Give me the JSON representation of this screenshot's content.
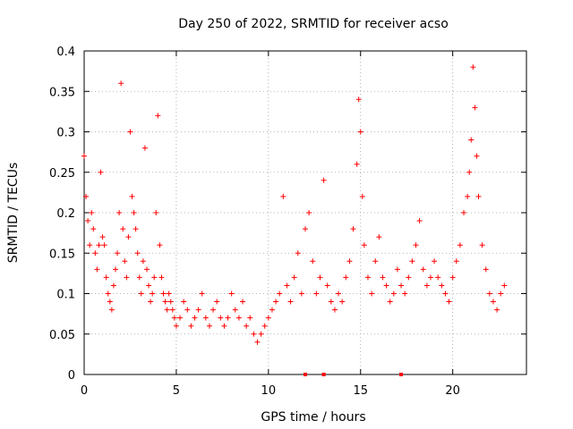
{
  "chart_data": {
    "type": "scatter",
    "title": "Day 250 of 2022, SRMTID for receiver acso",
    "xlabel": "GPS time / hours",
    "ylabel": "SRMTID / TECUs",
    "xlim": [
      0,
      24
    ],
    "ylim": [
      0,
      0.4
    ],
    "xticks": [
      0,
      5,
      10,
      15,
      20
    ],
    "yticks": [
      0,
      0.05,
      0.1,
      0.15,
      0.2,
      0.25,
      0.3,
      0.35,
      0.4
    ],
    "xtick_labels": [
      "0",
      "5",
      "10",
      "15",
      "20"
    ],
    "ytick_labels": [
      "0",
      "0.05",
      "0.1",
      "0.15",
      "0.2",
      "0.25",
      "0.3",
      "0.35",
      "0.4"
    ],
    "grid": true,
    "marker": "+",
    "color": "#ff0000",
    "series": [
      {
        "name": "SRMTID",
        "x": [
          0.0,
          0.1,
          0.2,
          0.3,
          0.4,
          0.5,
          0.6,
          0.7,
          0.8,
          0.9,
          1.0,
          1.1,
          1.2,
          1.3,
          1.4,
          1.5,
          1.6,
          1.7,
          1.8,
          1.9,
          2.0,
          2.1,
          2.2,
          2.3,
          2.4,
          2.5,
          2.6,
          2.7,
          2.8,
          2.9,
          3.0,
          3.1,
          3.2,
          3.3,
          3.4,
          3.5,
          3.6,
          3.7,
          3.8,
          3.9,
          4.0,
          4.1,
          4.2,
          4.3,
          4.4,
          4.5,
          4.6,
          4.7,
          4.8,
          4.9,
          5.0,
          5.2,
          5.4,
          5.6,
          5.8,
          6.0,
          6.2,
          6.4,
          6.6,
          6.8,
          7.0,
          7.2,
          7.4,
          7.6,
          7.8,
          8.0,
          8.2,
          8.4,
          8.6,
          8.8,
          9.0,
          9.2,
          9.4,
          9.6,
          9.8,
          10.0,
          10.2,
          10.4,
          10.6,
          10.8,
          11.0,
          11.2,
          11.4,
          11.6,
          11.8,
          12.0,
          12.2,
          12.4,
          12.6,
          12.8,
          13.0,
          13.2,
          13.4,
          13.6,
          13.8,
          14.0,
          14.2,
          14.4,
          14.6,
          14.8,
          14.9,
          15.0,
          15.1,
          15.2,
          15.4,
          15.6,
          15.8,
          16.0,
          16.2,
          16.4,
          16.6,
          16.8,
          17.0,
          17.2,
          17.4,
          17.6,
          17.8,
          18.0,
          18.2,
          18.4,
          18.6,
          18.8,
          19.0,
          19.2,
          19.4,
          19.6,
          19.8,
          20.0,
          20.2,
          20.4,
          20.6,
          20.8,
          20.9,
          21.0,
          21.1,
          21.2,
          21.3,
          21.4,
          21.6,
          21.8,
          22.0,
          22.2,
          22.4,
          22.6,
          22.8
        ],
        "y": [
          0.27,
          0.22,
          0.19,
          0.16,
          0.2,
          0.18,
          0.15,
          0.13,
          0.16,
          0.25,
          0.17,
          0.16,
          0.12,
          0.1,
          0.09,
          0.08,
          0.11,
          0.13,
          0.15,
          0.2,
          0.36,
          0.18,
          0.14,
          0.12,
          0.17,
          0.3,
          0.22,
          0.2,
          0.18,
          0.15,
          0.12,
          0.1,
          0.14,
          0.28,
          0.13,
          0.11,
          0.09,
          0.1,
          0.12,
          0.2,
          0.32,
          0.16,
          0.12,
          0.1,
          0.09,
          0.08,
          0.1,
          0.09,
          0.08,
          0.07,
          0.06,
          0.07,
          0.09,
          0.08,
          0.06,
          0.07,
          0.08,
          0.1,
          0.07,
          0.06,
          0.08,
          0.09,
          0.07,
          0.06,
          0.07,
          0.1,
          0.08,
          0.07,
          0.09,
          0.06,
          0.07,
          0.05,
          0.04,
          0.05,
          0.06,
          0.07,
          0.08,
          0.09,
          0.1,
          0.22,
          0.11,
          0.09,
          0.12,
          0.15,
          0.1,
          0.18,
          0.2,
          0.14,
          0.1,
          0.12,
          0.24,
          0.11,
          0.09,
          0.08,
          0.1,
          0.09,
          0.12,
          0.14,
          0.18,
          0.26,
          0.34,
          0.3,
          0.22,
          0.16,
          0.12,
          0.1,
          0.14,
          0.17,
          0.12,
          0.11,
          0.09,
          0.1,
          0.13,
          0.11,
          0.1,
          0.12,
          0.14,
          0.16,
          0.19,
          0.13,
          0.11,
          0.12,
          0.14,
          0.12,
          0.11,
          0.1,
          0.09,
          0.12,
          0.14,
          0.16,
          0.2,
          0.22,
          0.25,
          0.29,
          0.38,
          0.33,
          0.27,
          0.22,
          0.16,
          0.13,
          0.1,
          0.09,
          0.08,
          0.1,
          0.11
        ]
      }
    ],
    "markers_on_axis_x": [
      12.0,
      13.0,
      17.2
    ]
  }
}
